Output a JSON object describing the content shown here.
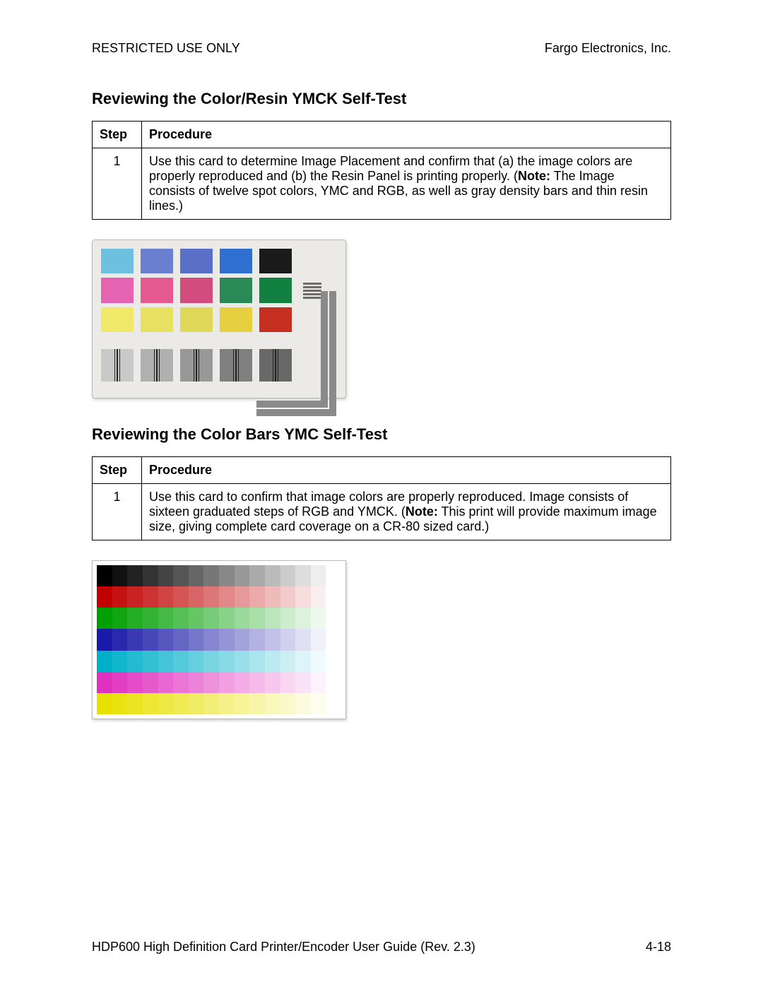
{
  "header": {
    "left": "RESTRICTED USE ONLY",
    "right": "Fargo Electronics, Inc."
  },
  "section1": {
    "title": "Reviewing the Color/Resin YMCK Self-Test",
    "table": {
      "col_step": "Step",
      "col_proc": "Procedure",
      "row1": {
        "step": "1",
        "text_a": "Use this card to determine Image Placement and confirm that (a) the image colors are properly reproduced and (b) the Resin Panel is printing properly. (",
        "note": "Note:",
        "text_b": " The Image consists of twelve spot colors, YMC and RGB, as well as gray density bars and thin resin lines.)"
      }
    },
    "card": {
      "background": "#eceae6",
      "columns": [
        [
          "#6ec0e0",
          "#e564b2",
          "#f0e868"
        ],
        [
          "#6a7fd0",
          "#e35a90",
          "#e7e060"
        ],
        [
          "#5a6fc8",
          "#d24c7e",
          "#e0d858"
        ],
        [
          "#2f6fcf",
          "#2a8a55",
          "#e6d040"
        ],
        [
          "#1a1a1a",
          "#128040",
          "#c53020"
        ]
      ],
      "gray_line_color": "#6d6d6d",
      "gray_line_count": 5,
      "bottom_gray_levels": [
        "#c9c9c9",
        "#b0b0b0",
        "#989898",
        "#808080",
        "#686868"
      ],
      "resin_stripe_color": "#222222",
      "l_path_color": "#8a8a8a"
    }
  },
  "section2": {
    "title": "Reviewing the Color Bars YMC Self-Test",
    "table": {
      "col_step": "Step",
      "col_proc": "Procedure",
      "row1": {
        "step": "1",
        "text_a": "Use this card to confirm that image colors are properly reproduced. Image consists of sixteen graduated steps of RGB and YMCK. (",
        "note": "Note:",
        "text_b": "  This print will provide maximum image size, giving complete card coverage on a CR-80 sized card.)"
      }
    },
    "card": {
      "rows": [
        {
          "from": "#000000",
          "to": "#ffffff"
        },
        {
          "from": "#c00000",
          "to": "#ffffff"
        },
        {
          "from": "#00a000",
          "to": "#ffffff"
        },
        {
          "from": "#1a1aa8",
          "to": "#ffffff"
        },
        {
          "from": "#00b0c8",
          "to": "#ffffff"
        },
        {
          "from": "#e030c0",
          "to": "#ffffff"
        },
        {
          "from": "#e8e000",
          "to": "#ffffff"
        }
      ],
      "steps": 16
    }
  },
  "footer": {
    "left": "HDP600 High Definition Card Printer/Encoder User Guide (Rev. 2.3)",
    "right": "4-18"
  }
}
